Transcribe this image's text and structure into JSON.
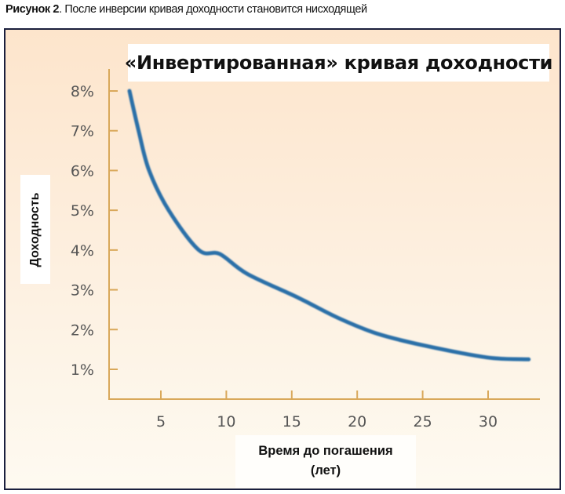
{
  "caption": {
    "prefix": "Рисунок 2",
    "text": ". После инверсии кривая доходности становится нисходящей"
  },
  "colors": {
    "frame_border": "#1a1f3d",
    "axis": "#d9a85a",
    "curve": "#2a6fa8",
    "tick_text": "#555555",
    "background_top": "#fde5cc",
    "background_bottom": "#fefaf1"
  },
  "chart_data": {
    "type": "line",
    "title": "«Инвертированная» кривая доходности",
    "xlabel": "Время до погашения (лет)",
    "ylabel": "Доходность",
    "x_ticks": [
      "5",
      "10",
      "15",
      "20",
      "25",
      "30"
    ],
    "y_ticks": [
      "1%",
      "2%",
      "3%",
      "4%",
      "5%",
      "6%",
      "7%",
      "8%"
    ],
    "xlim": [
      0,
      34
    ],
    "ylim": [
      0,
      8.5
    ],
    "grid": false,
    "legend": null,
    "series": [
      {
        "name": "Инвертированная кривая доходности",
        "x": [
          2.6,
          3.3,
          4.1,
          5.6,
          7.9,
          9.5,
          11.6,
          15.5,
          18.5,
          21.5,
          25.1,
          29.9,
          33.1
        ],
        "values": [
          8.0,
          7.0,
          6.0,
          5.0,
          4.0,
          3.9,
          3.4,
          2.8,
          2.3,
          1.9,
          1.6,
          1.3,
          1.25
        ]
      }
    ]
  },
  "labels": {
    "title": "«Инвертированная» кривая доходности",
    "ylabel": "Доходность",
    "xlabel_line1": "Время до погашения",
    "xlabel_line2": "(лет)"
  }
}
